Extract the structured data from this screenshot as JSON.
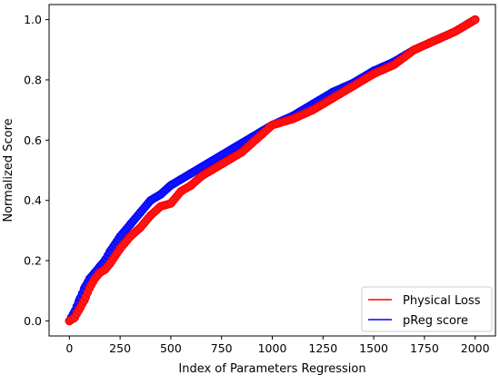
{
  "chart_data": {
    "type": "scatter",
    "title": "",
    "xlabel": "Index of Parameters Regression",
    "ylabel": "Normalized Score",
    "xlim": [
      -100,
      2100
    ],
    "ylim": [
      -0.05,
      1.05
    ],
    "xticks": [
      "0",
      "250",
      "500",
      "750",
      "1000",
      "1250",
      "1500",
      "1750",
      "2000"
    ],
    "yticks": [
      "0.0",
      "0.2",
      "0.4",
      "0.6",
      "0.8",
      "1.0"
    ],
    "legend_position": "lower-right",
    "series": [
      {
        "name": "pReg score",
        "color": "#0000ff",
        "x": [
          0,
          25,
          50,
          75,
          100,
          125,
          150,
          175,
          200,
          250,
          300,
          350,
          400,
          450,
          500,
          550,
          600,
          650,
          700,
          750,
          800,
          850,
          900,
          950,
          1000,
          1100,
          1200,
          1300,
          1400,
          1500,
          1600,
          1700,
          1800,
          1900,
          2000
        ],
        "y": [
          0.0,
          0.03,
          0.07,
          0.11,
          0.14,
          0.16,
          0.18,
          0.2,
          0.23,
          0.28,
          0.32,
          0.36,
          0.4,
          0.42,
          0.45,
          0.47,
          0.49,
          0.51,
          0.53,
          0.55,
          0.57,
          0.59,
          0.61,
          0.63,
          0.65,
          0.68,
          0.72,
          0.76,
          0.79,
          0.83,
          0.86,
          0.9,
          0.93,
          0.96,
          1.0
        ]
      },
      {
        "name": "Physical Loss",
        "color": "#ff0000",
        "x": [
          0,
          25,
          50,
          75,
          100,
          125,
          150,
          175,
          200,
          250,
          300,
          350,
          400,
          450,
          500,
          550,
          600,
          650,
          700,
          750,
          800,
          850,
          900,
          950,
          1000,
          1100,
          1200,
          1300,
          1400,
          1500,
          1600,
          1700,
          1800,
          1900,
          2000
        ],
        "y": [
          0.0,
          0.01,
          0.04,
          0.07,
          0.11,
          0.14,
          0.16,
          0.17,
          0.19,
          0.24,
          0.28,
          0.31,
          0.35,
          0.38,
          0.39,
          0.43,
          0.45,
          0.48,
          0.5,
          0.52,
          0.54,
          0.56,
          0.59,
          0.62,
          0.65,
          0.67,
          0.7,
          0.74,
          0.78,
          0.82,
          0.85,
          0.9,
          0.93,
          0.96,
          1.0
        ]
      }
    ],
    "legend": [
      {
        "label": "Physical Loss",
        "color": "#ff0000"
      },
      {
        "label": "pReg score",
        "color": "#0000ff"
      }
    ]
  }
}
